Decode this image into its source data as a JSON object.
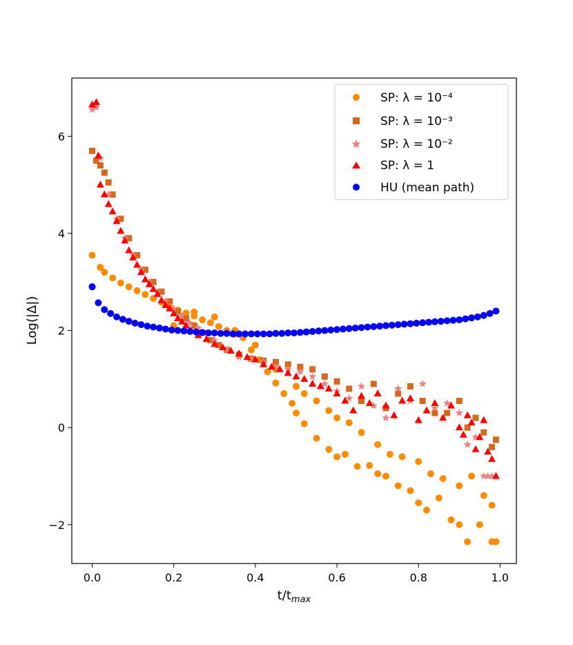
{
  "chart_data": {
    "type": "scatter",
    "title": "",
    "xlabel": "t/t_max",
    "ylabel": "Log(|Δ|)",
    "xlim": [
      -0.05,
      1.04
    ],
    "ylim": [
      -2.8,
      7.2
    ],
    "xticks": [
      0.0,
      0.2,
      0.4,
      0.6,
      0.8,
      1.0
    ],
    "xtick_labels": [
      "0.0",
      "0.2",
      "0.4",
      "0.6",
      "0.8",
      "1.0"
    ],
    "yticks": [
      -2,
      0,
      2,
      4,
      6
    ],
    "ytick_labels": [
      "−2",
      "0",
      "2",
      "4",
      "6"
    ],
    "grid": false,
    "legend_position": "top-right",
    "legend": [
      "SP: λ = 10⁻⁴",
      "SP: λ = 10⁻³",
      "SP: λ = 10⁻²",
      "SP: λ = 1",
      "HU (mean path)"
    ],
    "series": [
      {
        "name": "SP: λ = 10⁻⁴",
        "marker": "circle",
        "color": "#ff8c00",
        "x": [
          0.0,
          0.02,
          0.03,
          0.05,
          0.07,
          0.09,
          0.11,
          0.13,
          0.15,
          0.17,
          0.19,
          0.21,
          0.23,
          0.25,
          0.27,
          0.29,
          0.31,
          0.33,
          0.35,
          0.37,
          0.39,
          0.41,
          0.43,
          0.45,
          0.47,
          0.49,
          0.5,
          0.52,
          0.55,
          0.58,
          0.6,
          0.62,
          0.65,
          0.68,
          0.7,
          0.72,
          0.75,
          0.78,
          0.8,
          0.82,
          0.85,
          0.88,
          0.9,
          0.92,
          0.95,
          0.98,
          0.99
        ],
        "y": [
          3.55,
          3.3,
          3.2,
          3.08,
          2.98,
          2.9,
          2.82,
          2.74,
          2.66,
          2.58,
          2.48,
          2.42,
          2.36,
          2.3,
          2.22,
          2.16,
          2.08,
          2.0,
          1.92,
          1.85,
          1.6,
          1.4,
          1.15,
          0.92,
          0.7,
          0.5,
          0.3,
          0.08,
          -0.22,
          -0.45,
          -0.6,
          -0.55,
          -0.8,
          -0.78,
          -0.95,
          -1.0,
          -1.2,
          -1.3,
          -1.55,
          -1.7,
          -1.45,
          -1.9,
          -2.0,
          -2.35,
          -2.0,
          -2.35,
          -2.35
        ]
      },
      {
        "name": "SP: λ = 10⁻⁴",
        "marker": "circle",
        "color": "#ff8c00",
        "x": [
          0.2,
          0.25,
          0.3,
          0.35,
          0.4,
          0.45,
          0.5,
          0.52,
          0.55,
          0.58,
          0.6,
          0.63,
          0.66,
          0.7,
          0.73,
          0.76,
          0.8,
          0.83,
          0.86,
          0.9,
          0.93,
          0.96,
          0.98
        ],
        "y": [
          2.1,
          2.38,
          2.28,
          2.0,
          1.7,
          1.2,
          0.85,
          0.7,
          0.55,
          0.35,
          0.2,
          0.1,
          -0.1,
          -0.35,
          -0.55,
          -0.6,
          -0.7,
          -0.95,
          -1.05,
          -1.2,
          -1.0,
          -1.4,
          -1.6
        ]
      },
      {
        "name": "SP: λ = 10⁻³",
        "marker": "square",
        "color": "#d2691e",
        "x": [
          0.0,
          0.01,
          0.02,
          0.03,
          0.04,
          0.05,
          0.07,
          0.09,
          0.11,
          0.13,
          0.15,
          0.17,
          0.19,
          0.21,
          0.23,
          0.25,
          0.27,
          0.29,
          0.31,
          0.33,
          0.36,
          0.39,
          0.42,
          0.45,
          0.48,
          0.51,
          0.54,
          0.57,
          0.6,
          0.63,
          0.66,
          0.69,
          0.72,
          0.75,
          0.78,
          0.81,
          0.84,
          0.87,
          0.9,
          0.92,
          0.94,
          0.96,
          0.98,
          0.99
        ],
        "y": [
          5.7,
          5.5,
          5.4,
          5.25,
          5.05,
          4.8,
          4.3,
          3.9,
          3.55,
          3.25,
          3.0,
          2.8,
          2.6,
          2.4,
          2.25,
          2.1,
          1.95,
          1.8,
          1.7,
          1.6,
          1.5,
          1.42,
          1.38,
          1.35,
          1.3,
          1.25,
          1.2,
          1.05,
          0.95,
          0.8,
          0.55,
          0.9,
          0.4,
          0.7,
          0.85,
          0.55,
          0.3,
          0.3,
          0.55,
          0.0,
          0.2,
          -0.1,
          -0.4,
          -0.25
        ]
      },
      {
        "name": "SP: λ = 10⁻²",
        "marker": "star",
        "color": "#f08080",
        "x": [
          0.0,
          0.01,
          0.02,
          0.04,
          0.06,
          0.08,
          0.1,
          0.12,
          0.14,
          0.16,
          0.18,
          0.2,
          0.22,
          0.24,
          0.26,
          0.28,
          0.3,
          0.33,
          0.36,
          0.39,
          0.42,
          0.45,
          0.48,
          0.51,
          0.54,
          0.57,
          0.6,
          0.63,
          0.66,
          0.69,
          0.72,
          0.75,
          0.78,
          0.81,
          0.84,
          0.87,
          0.9,
          0.92,
          0.94,
          0.96,
          0.97,
          0.98
        ],
        "y": [
          6.55,
          6.6,
          5.55,
          4.8,
          4.3,
          3.9,
          3.55,
          3.25,
          3.0,
          2.8,
          2.6,
          2.45,
          2.3,
          2.15,
          2.05,
          1.95,
          1.8,
          1.6,
          1.45,
          1.4,
          1.35,
          1.25,
          1.2,
          1.15,
          1.05,
          0.9,
          0.75,
          0.6,
          0.85,
          0.45,
          0.2,
          0.8,
          0.55,
          0.9,
          0.4,
          0.5,
          0.3,
          -0.35,
          -0.2,
          -1.0,
          -1.0,
          -1.0
        ]
      },
      {
        "name": "SP: λ = 1",
        "marker": "triangle",
        "color": "#ff0000",
        "x": [
          0.0,
          0.01,
          0.015,
          0.02,
          0.03,
          0.04,
          0.05,
          0.06,
          0.07,
          0.08,
          0.09,
          0.1,
          0.11,
          0.12,
          0.13,
          0.14,
          0.15,
          0.16,
          0.17,
          0.18,
          0.19,
          0.2,
          0.21,
          0.22,
          0.23,
          0.24,
          0.26,
          0.28,
          0.3,
          0.32,
          0.34,
          0.36,
          0.38,
          0.4,
          0.42,
          0.44,
          0.46,
          0.48,
          0.5,
          0.52,
          0.54,
          0.56,
          0.58,
          0.6,
          0.62,
          0.64,
          0.66,
          0.68,
          0.7,
          0.72,
          0.74,
          0.76,
          0.78,
          0.8,
          0.82,
          0.84,
          0.86,
          0.88,
          0.9,
          0.91,
          0.92,
          0.93,
          0.94,
          0.95,
          0.96,
          0.97,
          0.98,
          0.99
        ],
        "y": [
          6.65,
          6.7,
          5.6,
          5.0,
          4.8,
          4.6,
          4.45,
          4.25,
          4.05,
          3.85,
          3.65,
          3.5,
          3.35,
          3.2,
          3.05,
          2.95,
          2.85,
          2.75,
          2.62,
          2.52,
          2.45,
          2.35,
          2.25,
          2.18,
          2.1,
          2.0,
          1.9,
          1.82,
          1.72,
          1.65,
          1.58,
          1.52,
          1.45,
          1.4,
          1.3,
          1.25,
          1.2,
          1.12,
          1.05,
          1.0,
          0.9,
          0.85,
          0.8,
          0.7,
          0.55,
          0.35,
          0.65,
          0.5,
          0.7,
          0.45,
          0.25,
          0.55,
          0.6,
          0.15,
          0.35,
          0.5,
          0.2,
          0.45,
          0.0,
          -0.15,
          0.25,
          0.1,
          -0.45,
          -0.2,
          0.15,
          -0.5,
          -0.65,
          -1.0
        ]
      },
      {
        "name": "HU (mean path)",
        "marker": "circle",
        "color": "#0000ff",
        "x": [
          0.0,
          0.015,
          0.03,
          0.045,
          0.06,
          0.075,
          0.09,
          0.105,
          0.12,
          0.135,
          0.15,
          0.165,
          0.18,
          0.195,
          0.21,
          0.225,
          0.24,
          0.255,
          0.27,
          0.285,
          0.3,
          0.315,
          0.33,
          0.345,
          0.36,
          0.375,
          0.39,
          0.405,
          0.42,
          0.435,
          0.45,
          0.465,
          0.48,
          0.495,
          0.51,
          0.525,
          0.54,
          0.555,
          0.57,
          0.585,
          0.6,
          0.615,
          0.63,
          0.645,
          0.66,
          0.675,
          0.69,
          0.705,
          0.72,
          0.735,
          0.75,
          0.765,
          0.78,
          0.795,
          0.81,
          0.825,
          0.84,
          0.855,
          0.87,
          0.885,
          0.9,
          0.915,
          0.93,
          0.945,
          0.96,
          0.975,
          0.99
        ],
        "y": [
          2.9,
          2.57,
          2.43,
          2.35,
          2.28,
          2.23,
          2.19,
          2.15,
          2.12,
          2.09,
          2.07,
          2.05,
          2.03,
          2.01,
          2.0,
          1.99,
          1.98,
          1.97,
          1.96,
          1.95,
          1.95,
          1.94,
          1.94,
          1.93,
          1.93,
          1.93,
          1.93,
          1.93,
          1.93,
          1.93,
          1.94,
          1.94,
          1.95,
          1.95,
          1.96,
          1.97,
          1.98,
          1.99,
          2.0,
          2.01,
          2.02,
          2.03,
          2.04,
          2.05,
          2.06,
          2.07,
          2.08,
          2.09,
          2.1,
          2.11,
          2.12,
          2.13,
          2.14,
          2.15,
          2.16,
          2.17,
          2.18,
          2.19,
          2.2,
          2.21,
          2.22,
          2.24,
          2.26,
          2.28,
          2.31,
          2.35,
          2.4
        ]
      }
    ]
  }
}
